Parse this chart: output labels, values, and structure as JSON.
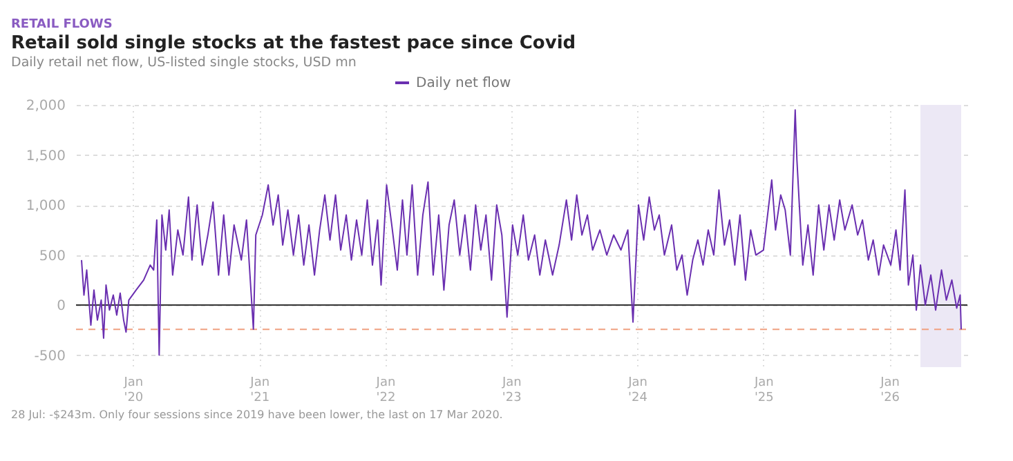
{
  "chart_data": {
    "type": "line",
    "title": "Retail sold single stocks at the fastest pace since Covid",
    "subtitle": "Daily retail net flow, US-listed single stocks, USD mn",
    "annotations": [
      "RETAIL FLOWS",
      "28 Jul: -$243m. Only four sessions since 2019 have been lower, the last on 17 Mar 2020."
    ],
    "series": [
      {
        "name": "Daily net flow",
        "color": "#6a2fb0",
        "x": [
          "2019-08-05",
          "2019-08-12",
          "2019-08-20",
          "2019-09-01",
          "2019-09-10",
          "2019-09-20",
          "2019-10-01",
          "2019-10-08",
          "2019-10-15",
          "2019-10-25",
          "2019-11-05",
          "2019-11-15",
          "2019-11-25",
          "2019-12-05",
          "2019-12-12",
          "2019-12-20",
          "2020-01-10",
          "2020-02-01",
          "2020-02-20",
          "2020-03-01",
          "2020-03-10",
          "2020-03-17",
          "2020-03-25",
          "2020-04-05",
          "2020-04-15",
          "2020-04-25",
          "2020-05-10",
          "2020-05-25",
          "2020-06-10",
          "2020-06-20",
          "2020-07-05",
          "2020-07-20",
          "2020-08-05",
          "2020-08-20",
          "2020-09-05",
          "2020-09-20",
          "2020-10-05",
          "2020-10-20",
          "2020-11-10",
          "2020-11-25",
          "2020-12-15",
          "2020-12-22",
          "2021-01-10",
          "2021-01-27",
          "2021-02-10",
          "2021-02-25",
          "2021-03-10",
          "2021-03-25",
          "2021-04-10",
          "2021-04-25",
          "2021-05-10",
          "2021-05-25",
          "2021-06-10",
          "2021-06-25",
          "2021-07-10",
          "2021-07-25",
          "2021-08-10",
          "2021-08-25",
          "2021-09-10",
          "2021-09-25",
          "2021-10-10",
          "2021-10-25",
          "2021-11-10",
          "2021-11-25",
          "2021-12-10",
          "2021-12-20",
          "2022-01-05",
          "2022-01-20",
          "2022-02-05",
          "2022-02-20",
          "2022-03-05",
          "2022-03-20",
          "2022-04-05",
          "2022-04-20",
          "2022-05-05",
          "2022-05-20",
          "2022-06-05",
          "2022-06-20",
          "2022-07-05",
          "2022-07-20",
          "2022-08-05",
          "2022-08-20",
          "2022-09-05",
          "2022-09-20",
          "2022-10-05",
          "2022-10-20",
          "2022-11-05",
          "2022-11-20",
          "2022-12-05",
          "2022-12-20",
          "2023-01-05",
          "2023-01-20",
          "2023-02-05",
          "2023-02-20",
          "2023-03-10",
          "2023-03-25",
          "2023-04-10",
          "2023-05-01",
          "2023-05-20",
          "2023-06-10",
          "2023-06-25",
          "2023-07-10",
          "2023-07-25",
          "2023-08-10",
          "2023-08-25",
          "2023-09-15",
          "2023-10-05",
          "2023-10-25",
          "2023-11-15",
          "2023-12-05",
          "2023-12-20",
          "2024-01-05",
          "2024-01-20",
          "2024-02-05",
          "2024-02-20",
          "2024-03-05",
          "2024-03-20",
          "2024-04-10",
          "2024-04-25",
          "2024-05-10",
          "2024-05-25",
          "2024-06-10",
          "2024-06-25",
          "2024-07-10",
          "2024-07-25",
          "2024-08-10",
          "2024-08-25",
          "2024-09-10",
          "2024-09-25",
          "2024-10-10",
          "2024-10-25",
          "2024-11-10",
          "2024-11-25",
          "2024-12-10",
          "2025-01-01",
          "2025-01-25",
          "2025-02-05",
          "2025-02-20",
          "2025-03-05",
          "2025-03-20",
          "2025-04-03",
          "2025-04-08",
          "2025-04-15",
          "2025-04-25",
          "2025-05-10",
          "2025-05-25",
          "2025-06-10",
          "2025-06-25",
          "2025-07-10",
          "2025-07-25",
          "2025-08-10",
          "2025-08-25",
          "2025-09-15",
          "2025-10-01",
          "2025-10-15",
          "2025-11-01",
          "2025-11-15",
          "2025-12-01",
          "2025-12-15",
          "2026-01-05",
          "2026-01-20",
          "2026-02-01",
          "2026-02-15",
          "2026-02-25",
          "2026-03-10",
          "2026-03-20",
          "2026-04-01",
          "2026-04-15",
          "2026-05-01",
          "2026-05-15",
          "2026-06-01",
          "2026-06-15",
          "2026-07-01",
          "2026-07-15",
          "2026-07-25",
          "2026-07-28"
        ],
        "values": [
          450,
          100,
          350,
          -200,
          150,
          -150,
          50,
          -330,
          200,
          -50,
          100,
          -100,
          120,
          -150,
          -270,
          50,
          150,
          250,
          400,
          350,
          850,
          -500,
          900,
          550,
          950,
          300,
          750,
          500,
          1080,
          450,
          1000,
          400,
          700,
          1030,
          300,
          900,
          300,
          800,
          450,
          850,
          -240,
          700,
          900,
          1200,
          800,
          1100,
          600,
          950,
          500,
          900,
          400,
          800,
          300,
          750,
          1100,
          650,
          1100,
          550,
          900,
          450,
          850,
          500,
          1050,
          400,
          850,
          200,
          1200,
          800,
          350,
          1050,
          500,
          1200,
          300,
          900,
          1230,
          300,
          900,
          150,
          800,
          1050,
          500,
          900,
          350,
          1000,
          550,
          900,
          250,
          1000,
          700,
          -120,
          800,
          500,
          900,
          450,
          700,
          300,
          650,
          300,
          600,
          1050,
          650,
          1100,
          700,
          900,
          550,
          750,
          500,
          700,
          550,
          750,
          -170,
          1000,
          650,
          1080,
          750,
          900,
          500,
          800,
          350,
          500,
          100,
          450,
          650,
          400,
          750,
          500,
          1150,
          600,
          850,
          400,
          900,
          250,
          750,
          500,
          550,
          1250,
          750,
          1100,
          950,
          500,
          1950,
          1450,
          1000,
          400,
          800,
          300,
          1000,
          550,
          1000,
          650,
          1050,
          750,
          1000,
          700,
          850,
          450,
          650,
          300,
          600,
          400,
          750,
          350,
          1150,
          200,
          500,
          -50,
          400,
          0,
          300,
          -50,
          350,
          50,
          250,
          -30,
          100,
          -243
        ]
      }
    ],
    "xlim": [
      "2019-07-20",
      "2026-08-15"
    ],
    "xticks": [
      {
        "value": "2020-01-01",
        "label": "Jan '20"
      },
      {
        "value": "2021-01-01",
        "label": "Jan '21"
      },
      {
        "value": "2022-01-01",
        "label": "Jan '22"
      },
      {
        "value": "2023-01-01",
        "label": "Jan '23"
      },
      {
        "value": "2024-01-01",
        "label": "Jan '24"
      },
      {
        "value": "2025-01-01",
        "label": "Jan '25"
      },
      {
        "value": "2026-01-01",
        "label": "Jan '26"
      }
    ],
    "ylim": [
      -620,
      2000
    ],
    "yticks": [
      {
        "value": -500,
        "label": "-500"
      },
      {
        "value": 0,
        "label": "0"
      },
      {
        "value": 500,
        "label": "500"
      },
      {
        "value": 1000,
        "label": "1,000"
      },
      {
        "value": 1500,
        "label": "1,500"
      },
      {
        "value": 2000,
        "label": "2,000"
      }
    ],
    "ref_lines": [
      {
        "axis": "y",
        "value": 0,
        "label": null,
        "color": "#333333",
        "line_style": "solid"
      },
      {
        "axis": "y",
        "value": -243,
        "label": null,
        "color": "#f0a080",
        "line_style": "dashed"
      }
    ],
    "bands": [
      {
        "axis": "x",
        "from": "2026-04-01",
        "to": "2026-07-28",
        "label": null,
        "color": "#ece8f5"
      }
    ],
    "grid": true,
    "legend": "top",
    "line_style": "solid",
    "marker": "none"
  }
}
